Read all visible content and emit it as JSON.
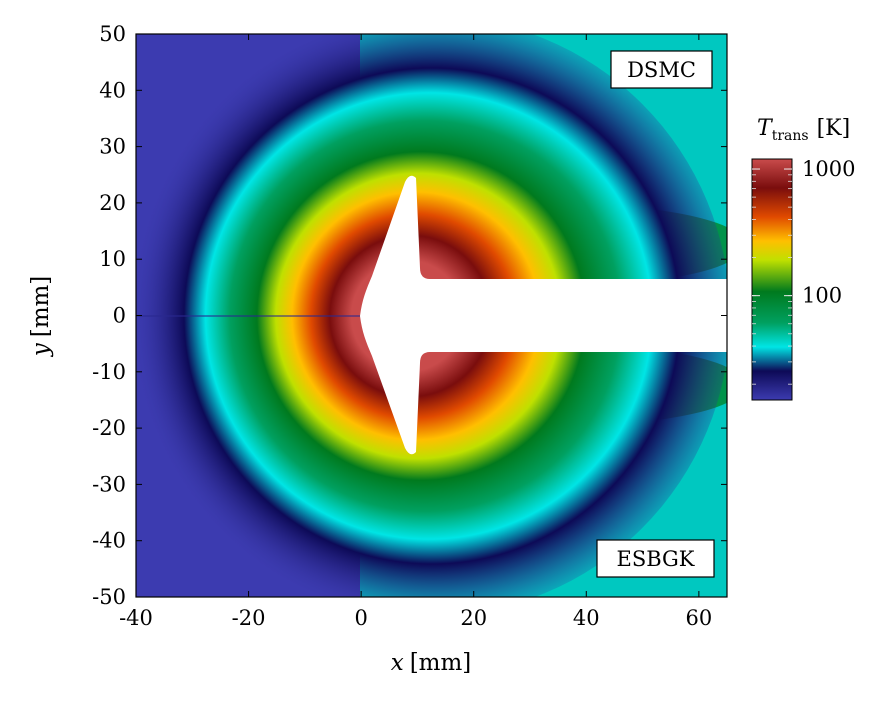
{
  "chart_data": {
    "type": "heatmap",
    "description": "Translational temperature contour around axisymmetric body; upper half DSMC, lower half ESBGK",
    "xlabel": {
      "var": "x",
      "unit": "[mm]"
    },
    "ylabel": {
      "var": "y",
      "unit": "[mm]"
    },
    "xlim": [
      -40,
      65
    ],
    "ylim": [
      -50,
      50
    ],
    "x_ticks": [
      {
        "value": -40,
        "label": "-40"
      },
      {
        "value": -20,
        "label": "-20"
      },
      {
        "value": 0,
        "label": "0"
      },
      {
        "value": 20,
        "label": "20"
      },
      {
        "value": 40,
        "label": "40"
      },
      {
        "value": 60,
        "label": "60"
      }
    ],
    "y_ticks": [
      {
        "value": 50,
        "label": "50"
      },
      {
        "value": 40,
        "label": "40"
      },
      {
        "value": 30,
        "label": "30"
      },
      {
        "value": 20,
        "label": "20"
      },
      {
        "value": 10,
        "label": "10"
      },
      {
        "value": 0,
        "label": "0"
      },
      {
        "value": -10,
        "label": "-10"
      },
      {
        "value": -20,
        "label": "-20"
      },
      {
        "value": -30,
        "label": "-30"
      },
      {
        "value": -40,
        "label": "-40"
      },
      {
        "value": -50,
        "label": "-50"
      }
    ],
    "panel_labels": {
      "upper": "DSMC",
      "lower": "ESBGK"
    },
    "colorbar": {
      "title_var": "T",
      "title_sub": "trans",
      "title_unit": "[K]",
      "scale": "log",
      "range": [
        15,
        1200
      ],
      "ticks": [
        {
          "value": 1000,
          "label": "1000"
        },
        {
          "value": 100,
          "label": "100"
        }
      ],
      "colors": [
        "#3c3bb0",
        "#0d0a57",
        "#00e5e5",
        "#00a060",
        "#007a1e",
        "#bfe000",
        "#ffbf00",
        "#e04a00",
        "#7a0d0d",
        "#c94b4b"
      ]
    },
    "body_geometry_mm": {
      "nose_x": 0,
      "cone_half_width_max": 25,
      "cone_end_x": 10,
      "sting_half_width": 6,
      "sting_start_x": 11
    }
  }
}
